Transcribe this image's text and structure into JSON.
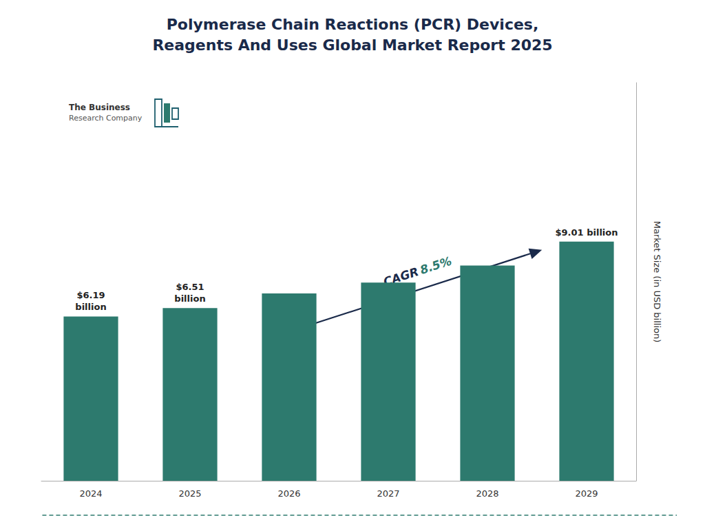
{
  "chart_data": {
    "type": "bar",
    "title": "Polymerase Chain Reactions (PCR) Devices,\nReagents And Uses Global Market Report 2025",
    "categories": [
      "2024",
      "2025",
      "2026",
      "2027",
      "2028",
      "2029"
    ],
    "values": [
      6.19,
      6.51,
      7.06,
      7.47,
      8.11,
      9.01
    ],
    "value_labels": [
      "$6.19\nbillion",
      "$6.51\nbillion",
      null,
      null,
      null,
      "$9.01 billion"
    ],
    "color": "#2d7a6e",
    "ylabel": "Market Size (in USD billion)",
    "ylim": [
      0,
      15
    ],
    "tick_labels": "x",
    "grid": false,
    "annotations": [
      "CAGR",
      "8.5%",
      "The Business",
      "Research Company"
    ]
  }
}
